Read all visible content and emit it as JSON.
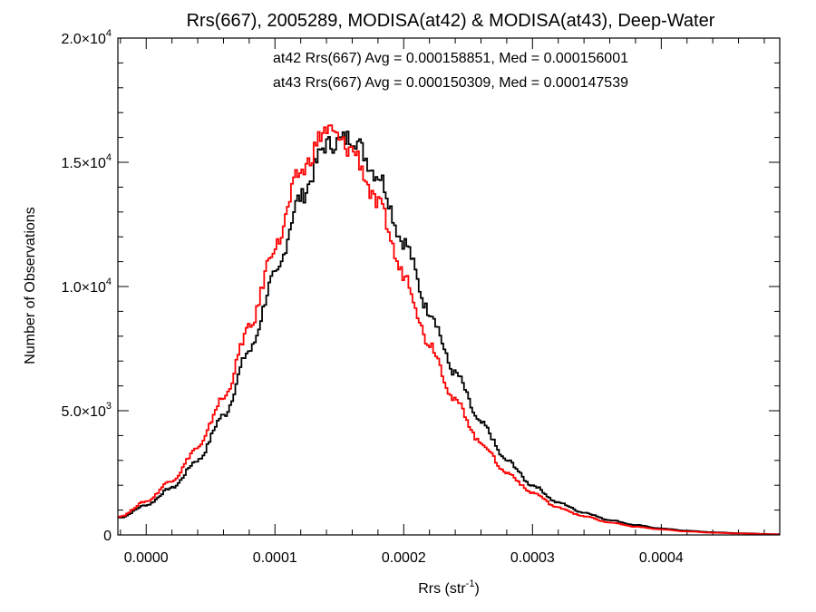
{
  "chart_data": {
    "type": "step",
    "title": "Rrs(667), 2005289, MODISA(at42) & MODISA(at43), Deep-Water",
    "xlabel_main": "Rrs (str",
    "xlabel_sup": "-1",
    "xlabel_end": ")",
    "ylabel": "Number of Observations",
    "xlim": [
      -2.2e-05,
      0.000492
    ],
    "ylim": [
      0,
      20000
    ],
    "x_ticks": [
      {
        "value": 0.0,
        "label": "0.0000"
      },
      {
        "value": 0.0001,
        "label": "0.0001"
      },
      {
        "value": 0.0002,
        "label": "0.0002"
      },
      {
        "value": 0.0003,
        "label": "0.0003"
      },
      {
        "value": 0.0004,
        "label": "0.0004"
      }
    ],
    "y_ticks": [
      {
        "value": 0,
        "mant": "0",
        "exp": ""
      },
      {
        "value": 5000,
        "mant": "5.0×10",
        "exp": "3"
      },
      {
        "value": 10000,
        "mant": "1.0×10",
        "exp": "4"
      },
      {
        "value": 15000,
        "mant": "1.5×10",
        "exp": "4"
      },
      {
        "value": 20000,
        "mant": "2.0×10",
        "exp": "4"
      }
    ],
    "annotations": [
      {
        "text": "at42 Rrs(667) Avg = 0.000158851, Med = 0.000156001",
        "color": "#000000"
      },
      {
        "text": "at43 Rrs(667) Avg = 0.000150309, Med = 0.000147539",
        "color": "#ff0000"
      }
    ],
    "series": [
      {
        "color": "#000000",
        "x": [
          -2e-05,
          0.0,
          2e-05,
          4e-05,
          6e-05,
          8e-05,
          0.0001,
          0.00012,
          0.00014,
          0.00016,
          0.00018,
          0.0002,
          0.00022,
          0.00024,
          0.00026,
          0.00028,
          0.0003,
          0.00032,
          0.00034,
          0.00036,
          0.00038,
          0.0004,
          0.00042,
          0.00044,
          0.00046,
          0.00049
        ],
        "y": [
          700,
          1200,
          1900,
          3000,
          4800,
          7400,
          10400,
          13600,
          15700,
          16000,
          14500,
          11800,
          9000,
          6500,
          4500,
          3000,
          2000,
          1300,
          900,
          600,
          400,
          260,
          170,
          110,
          70,
          30
        ]
      },
      {
        "color": "#ff0000",
        "x": [
          -2e-05,
          0.0,
          2e-05,
          4e-05,
          6e-05,
          8e-05,
          0.0001,
          0.00012,
          0.00014,
          0.00016,
          0.00018,
          0.0002,
          0.00022,
          0.00024,
          0.00026,
          0.00028,
          0.0003,
          0.00032,
          0.00034,
          0.00036,
          0.00038,
          0.0004,
          0.00042,
          0.00044,
          0.00046,
          0.00049
        ],
        "y": [
          750,
          1350,
          2200,
          3500,
          5500,
          8300,
          11600,
          14600,
          16300,
          15500,
          13300,
          10500,
          7700,
          5400,
          3700,
          2500,
          1700,
          1100,
          750,
          500,
          330,
          220,
          140,
          90,
          60,
          25
        ]
      }
    ]
  }
}
